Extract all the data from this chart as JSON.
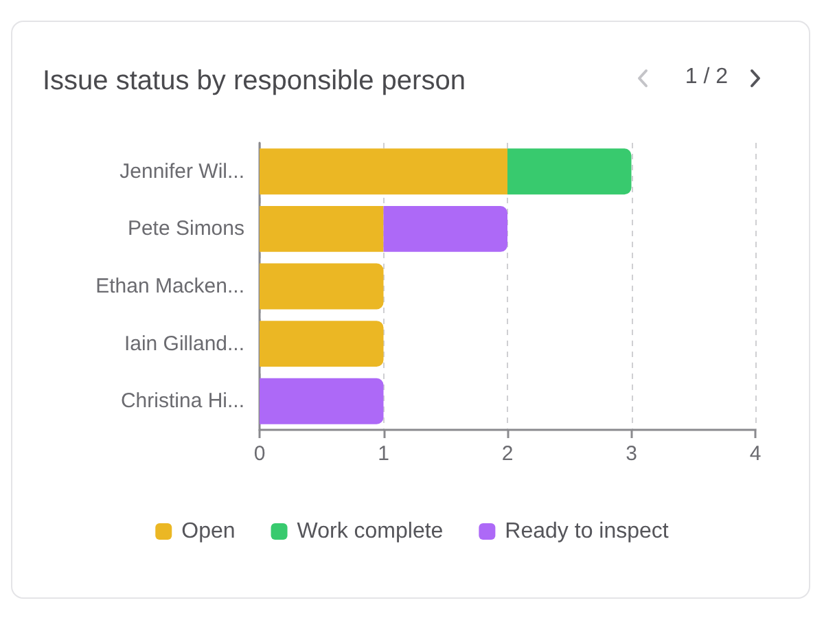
{
  "chart_data": {
    "type": "bar",
    "orientation": "horizontal",
    "stacked": true,
    "title": "Issue status by responsible person",
    "annotations": [
      "1 / 2"
    ],
    "categories": [
      "Jennifer Wil...",
      "Pete Simons",
      "Ethan Macken...",
      "Iain Gilland...",
      "Christina Hi..."
    ],
    "series": [
      {
        "name": "Open",
        "color": "#ebb724",
        "values": [
          2,
          1,
          1,
          1,
          0
        ]
      },
      {
        "name": "Work complete",
        "color": "#38ca6e",
        "values": [
          1,
          0,
          0,
          0,
          0
        ]
      },
      {
        "name": "Ready to inspect",
        "color": "#ad69f7",
        "values": [
          0,
          1,
          0,
          0,
          1
        ]
      }
    ],
    "xlim": [
      0,
      4
    ],
    "xticks": [
      0,
      1,
      2,
      3,
      4
    ],
    "grid": "x",
    "legend": "bottom"
  }
}
